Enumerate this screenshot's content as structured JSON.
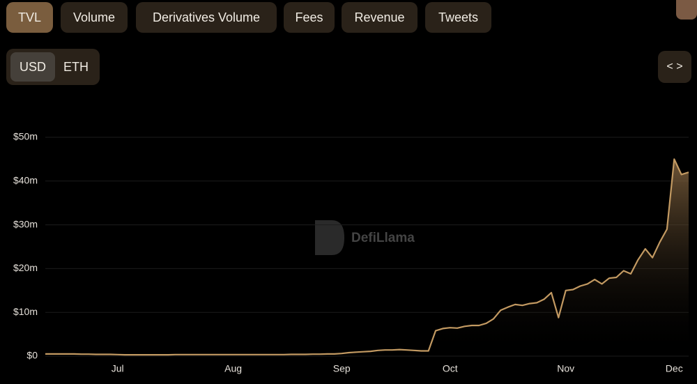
{
  "tabs": [
    "TVL",
    "Volume",
    "Derivatives Volume",
    "Fees",
    "Revenue",
    "Tweets"
  ],
  "currency": [
    "USD",
    "ETH"
  ],
  "watermark": "DefiLlama",
  "chart_data": {
    "type": "line",
    "color": "#c39a62",
    "categories": [
      null,
      null,
      null,
      null,
      null,
      null,
      null,
      null,
      null,
      null,
      "Jul",
      null,
      null,
      null,
      null,
      null,
      null,
      null,
      null,
      null,
      null,
      null,
      null,
      null,
      null,
      null,
      "Aug",
      null,
      null,
      null,
      null,
      null,
      null,
      null,
      null,
      null,
      null,
      null,
      null,
      null,
      null,
      "Sep",
      null,
      null,
      null,
      null,
      null,
      null,
      null,
      null,
      null,
      null,
      null,
      null,
      null,
      null,
      "Oct",
      null,
      null,
      null,
      null,
      null,
      null,
      null,
      null,
      null,
      null,
      null,
      null,
      null,
      null,
      null,
      "Nov",
      null,
      null,
      null,
      null,
      null,
      null,
      null,
      null,
      null,
      null,
      null,
      null,
      null,
      null,
      "Dec",
      null,
      null
    ],
    "values": [
      0.5,
      0.5,
      0.5,
      0.5,
      0.5,
      0.45,
      0.45,
      0.4,
      0.4,
      0.4,
      0.35,
      0.3,
      0.3,
      0.3,
      0.3,
      0.3,
      0.3,
      0.3,
      0.35,
      0.35,
      0.35,
      0.35,
      0.35,
      0.35,
      0.35,
      0.35,
      0.35,
      0.35,
      0.35,
      0.35,
      0.35,
      0.35,
      0.35,
      0.35,
      0.4,
      0.4,
      0.4,
      0.45,
      0.45,
      0.5,
      0.5,
      0.6,
      0.8,
      0.9,
      1.0,
      1.1,
      1.3,
      1.4,
      1.4,
      1.5,
      1.4,
      1.3,
      1.2,
      1.2,
      5.8,
      6.3,
      6.5,
      6.4,
      6.8,
      7,
      7,
      7.5,
      8.5,
      10.5,
      11.2,
      11.8,
      11.6,
      12,
      12.2,
      13,
      14.5,
      8.8,
      15,
      15.2,
      16,
      16.5,
      17.5,
      16.5,
      17.8,
      18,
      19.5,
      18.8,
      22,
      24.5,
      22.5,
      26,
      29,
      45,
      41.5,
      42
    ],
    "ylim": [
      0,
      50
    ],
    "yticks": [
      {
        "value": 0,
        "label": "$0"
      },
      {
        "value": 10,
        "label": "$10m"
      },
      {
        "value": 20,
        "label": "$20m"
      },
      {
        "value": 30,
        "label": "$30m"
      },
      {
        "value": 40,
        "label": "$40m"
      },
      {
        "value": 50,
        "label": "$50m"
      }
    ],
    "grid": true
  }
}
